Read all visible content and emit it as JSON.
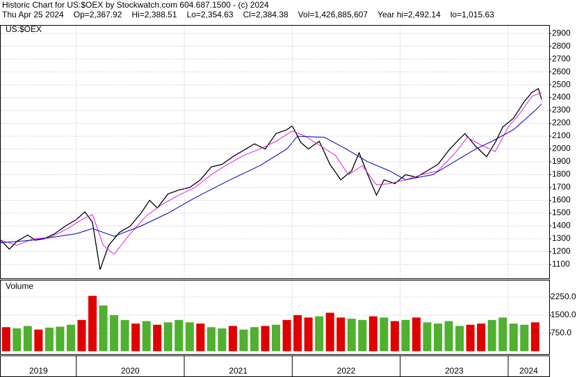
{
  "header": {
    "title": "Historic Chart for US:$OEX by Stockwatch.com 604.687.1500 - (c) 2024",
    "fields": [
      "Thu Apr 25 2024",
      "Op=2,367.92",
      "Hi=2,388.51",
      "Lo=2,354.63",
      "Cl=2,384.38",
      "Vol=1,426,885,607",
      "Year hi=2,492.14",
      "lo=1,015.63"
    ]
  },
  "chart_data": [
    {
      "type": "line",
      "title": "US:$OEX",
      "grid": true,
      "xlim": [
        2019.3,
        2024.38
      ],
      "xticks": [
        2019,
        2020,
        2021,
        2022,
        2023,
        2024
      ],
      "ylim": [
        992,
        2960
      ],
      "yticks": [
        1100,
        1200,
        1300,
        1400,
        1500,
        1600,
        1700,
        1800,
        1900,
        2000,
        2100,
        2200,
        2300,
        2400,
        2500,
        2600,
        2700,
        2800,
        2900
      ],
      "series": [
        {
          "color": "#000000",
          "x": [
            2019.3,
            2019.38,
            2019.45,
            2019.55,
            2019.62,
            2019.7,
            2019.8,
            2019.9,
            2020.0,
            2020.08,
            2020.15,
            2020.22,
            2020.3,
            2020.4,
            2020.5,
            2020.6,
            2020.68,
            2020.75,
            2020.85,
            2020.95,
            2021.05,
            2021.15,
            2021.25,
            2021.35,
            2021.45,
            2021.55,
            2021.65,
            2021.75,
            2021.85,
            2021.95,
            2022.0,
            2022.08,
            2022.15,
            2022.25,
            2022.35,
            2022.45,
            2022.55,
            2022.62,
            2022.7,
            2022.78,
            2022.85,
            2022.95,
            2023.05,
            2023.15,
            2023.25,
            2023.35,
            2023.45,
            2023.55,
            2023.6,
            2023.7,
            2023.8,
            2023.88,
            2023.95,
            2024.05,
            2024.15,
            2024.22,
            2024.28,
            2024.31
          ],
          "values": [
            1290,
            1220,
            1280,
            1330,
            1290,
            1300,
            1340,
            1400,
            1450,
            1510,
            1430,
            1060,
            1250,
            1350,
            1400,
            1500,
            1600,
            1540,
            1650,
            1680,
            1700,
            1760,
            1860,
            1880,
            1940,
            1990,
            2040,
            2000,
            2120,
            2150,
            2180,
            2050,
            2000,
            2060,
            1880,
            1760,
            1830,
            1970,
            1800,
            1640,
            1760,
            1730,
            1800,
            1780,
            1830,
            1880,
            1990,
            2080,
            2120,
            2020,
            1940,
            2050,
            2170,
            2240,
            2370,
            2440,
            2470,
            2384
          ]
        },
        {
          "color": "#e020e0",
          "x": [
            2019.3,
            2019.45,
            2019.6,
            2019.75,
            2019.9,
            2020.05,
            2020.15,
            2020.25,
            2020.35,
            2020.5,
            2020.65,
            2020.8,
            2020.95,
            2021.1,
            2021.25,
            2021.4,
            2021.55,
            2021.7,
            2021.85,
            2022.0,
            2022.12,
            2022.25,
            2022.4,
            2022.52,
            2022.65,
            2022.78,
            2022.9,
            2023.05,
            2023.2,
            2023.35,
            2023.5,
            2023.62,
            2023.75,
            2023.88,
            2024.0,
            2024.12,
            2024.22,
            2024.31
          ],
          "values": [
            1290,
            1250,
            1300,
            1310,
            1370,
            1450,
            1490,
            1250,
            1180,
            1340,
            1480,
            1570,
            1640,
            1700,
            1800,
            1880,
            1950,
            2000,
            2060,
            2140,
            2100,
            2030,
            1950,
            1800,
            1870,
            1720,
            1730,
            1760,
            1800,
            1830,
            1960,
            2090,
            2030,
            1980,
            2170,
            2290,
            2410,
            2440
          ]
        },
        {
          "color": "#0000c0",
          "x": [
            2019.3,
            2019.6,
            2020.0,
            2020.15,
            2020.35,
            2020.6,
            2020.85,
            2021.1,
            2021.4,
            2021.7,
            2021.95,
            2022.05,
            2022.3,
            2022.5,
            2022.7,
            2022.9,
            2023.05,
            2023.3,
            2023.5,
            2023.7,
            2023.85,
            2024.05,
            2024.25,
            2024.31
          ],
          "values": [
            1270,
            1290,
            1340,
            1380,
            1320,
            1400,
            1500,
            1620,
            1750,
            1870,
            2000,
            2100,
            2090,
            2000,
            1900,
            1830,
            1760,
            1800,
            1900,
            2000,
            2060,
            2150,
            2300,
            2350
          ]
        }
      ]
    },
    {
      "type": "bar",
      "title": "Volume",
      "xlim": [
        2019.3,
        2024.38
      ],
      "ylim": [
        -120,
        2940
      ],
      "yticks": [
        {
          "value": 2250,
          "label": "2250.0"
        },
        {
          "value": 1500,
          "label": "1500.0"
        },
        {
          "value": 750,
          "label": "750.0"
        }
      ],
      "x": [
        2019.35,
        2019.45,
        2019.55,
        2019.65,
        2019.75,
        2019.85,
        2019.95,
        2020.05,
        2020.15,
        2020.25,
        2020.35,
        2020.45,
        2020.55,
        2020.65,
        2020.75,
        2020.85,
        2020.95,
        2021.05,
        2021.15,
        2021.25,
        2021.35,
        2021.45,
        2021.55,
        2021.65,
        2021.75,
        2021.85,
        2021.95,
        2022.05,
        2022.15,
        2022.25,
        2022.35,
        2022.45,
        2022.55,
        2022.65,
        2022.75,
        2022.85,
        2022.95,
        2023.05,
        2023.15,
        2023.25,
        2023.35,
        2023.45,
        2023.55,
        2023.65,
        2023.75,
        2023.85,
        2023.95,
        2024.05,
        2024.15,
        2024.25
      ],
      "values": [
        1000,
        950,
        1050,
        900,
        980,
        1020,
        1100,
        1300,
        2300,
        1900,
        1500,
        1300,
        1150,
        1250,
        1100,
        1200,
        1300,
        1200,
        1150,
        1000,
        950,
        1050,
        900,
        1000,
        1050,
        1100,
        1300,
        1500,
        1400,
        1450,
        1600,
        1400,
        1350,
        1300,
        1450,
        1400,
        1250,
        1300,
        1400,
        1200,
        1150,
        1250,
        1050,
        1100,
        1150,
        1300,
        1400,
        1150,
        1100,
        1200
      ],
      "colors": [
        "#e00000",
        "#50b030",
        "#50b030",
        "#e00000",
        "#50b030",
        "#50b030",
        "#50b030",
        "#e00000",
        "#e00000",
        "#50b030",
        "#50b030",
        "#50b030",
        "#e00000",
        "#50b030",
        "#e00000",
        "#50b030",
        "#50b030",
        "#50b030",
        "#e00000",
        "#50b030",
        "#50b030",
        "#e00000",
        "#50b030",
        "#50b030",
        "#e00000",
        "#50b030",
        "#e00000",
        "#e00000",
        "#e00000",
        "#50b030",
        "#e00000",
        "#e00000",
        "#50b030",
        "#50b030",
        "#e00000",
        "#50b030",
        "#e00000",
        "#50b030",
        "#e00000",
        "#50b030",
        "#50b030",
        "#50b030",
        "#50b030",
        "#e00000",
        "#e00000",
        "#50b030",
        "#50b030",
        "#50b030",
        "#50b030",
        "#e00000"
      ]
    }
  ]
}
